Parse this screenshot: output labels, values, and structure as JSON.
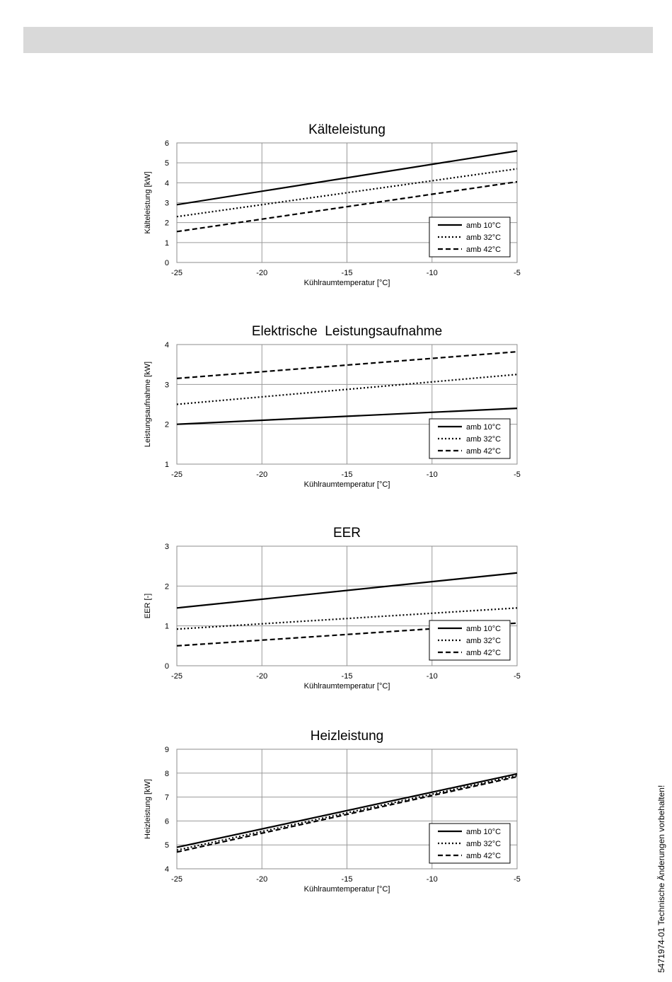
{
  "side_note": "5471974-01 Technische Änderungen vorbehalten!",
  "chart_data": [
    {
      "type": "line",
      "title": "Kälteleistung",
      "xlabel": "Kühlraumtemperatur [°C]",
      "ylabel": "Kälteleistung [kW]",
      "xlim": [
        -25,
        -5
      ],
      "ylim": [
        0,
        6
      ],
      "xticks": [
        -25,
        -20,
        -15,
        -10,
        -5
      ],
      "yticks": [
        0,
        1,
        2,
        3,
        4,
        5,
        6
      ],
      "grid": true,
      "legend": "bottom-right",
      "x": [
        -25,
        -5
      ],
      "series": [
        {
          "name": "amb 10°C",
          "style": "solid",
          "values": [
            2.9,
            5.6
          ]
        },
        {
          "name": "amb 32°C",
          "style": "dotted",
          "values": [
            2.3,
            4.7
          ]
        },
        {
          "name": "amb 42°C",
          "style": "dashed",
          "values": [
            1.55,
            4.05
          ]
        }
      ]
    },
    {
      "type": "line",
      "title": "Elektrische  Leistungsaufnahme",
      "xlabel": "Kühlraumtemperatur [°C]",
      "ylabel": "Leistungsaufnahme [kW]",
      "xlim": [
        -25,
        -5
      ],
      "ylim": [
        1,
        4
      ],
      "xticks": [
        -25,
        -20,
        -15,
        -10,
        -5
      ],
      "yticks": [
        1,
        2,
        3,
        4
      ],
      "grid": true,
      "legend": "bottom-right",
      "x": [
        -25,
        -5
      ],
      "series": [
        {
          "name": "amb 10°C",
          "style": "solid",
          "values": [
            2.0,
            2.4
          ]
        },
        {
          "name": "amb 32°C",
          "style": "dotted",
          "values": [
            2.5,
            3.25
          ]
        },
        {
          "name": "amb 42°C",
          "style": "dashed",
          "values": [
            3.15,
            3.82
          ]
        }
      ]
    },
    {
      "type": "line",
      "title": "EER",
      "xlabel": "Kühlraumtemperatur [°C]",
      "ylabel": "EER [-]",
      "xlim": [
        -25,
        -5
      ],
      "ylim": [
        0,
        3
      ],
      "xticks": [
        -25,
        -20,
        -15,
        -10,
        -5
      ],
      "yticks": [
        0,
        1,
        2,
        3
      ],
      "grid": true,
      "legend": "bottom-right",
      "x": [
        -25,
        -5
      ],
      "series": [
        {
          "name": "amb 10°C",
          "style": "solid",
          "values": [
            1.45,
            2.33
          ]
        },
        {
          "name": "amb 32°C",
          "style": "dotted",
          "values": [
            0.92,
            1.45
          ]
        },
        {
          "name": "amb 42°C",
          "style": "dashed",
          "values": [
            0.5,
            1.07
          ]
        }
      ]
    },
    {
      "type": "line",
      "title": "Heizleistung",
      "xlabel": "Kühlraumtemperatur [°C]",
      "ylabel": "Heizleistung [kW]",
      "xlim": [
        -25,
        -5
      ],
      "ylim": [
        4,
        9
      ],
      "xticks": [
        -25,
        -20,
        -15,
        -10,
        -5
      ],
      "yticks": [
        4,
        5,
        6,
        7,
        8,
        9
      ],
      "grid": true,
      "legend": "bottom-right",
      "x": [
        -25,
        -5
      ],
      "series": [
        {
          "name": "amb 10°C",
          "style": "solid",
          "values": [
            4.9,
            7.97
          ]
        },
        {
          "name": "amb 32°C",
          "style": "dotted",
          "values": [
            4.78,
            7.9
          ]
        },
        {
          "name": "amb 42°C",
          "style": "dashed",
          "values": [
            4.7,
            7.85
          ]
        }
      ]
    }
  ]
}
